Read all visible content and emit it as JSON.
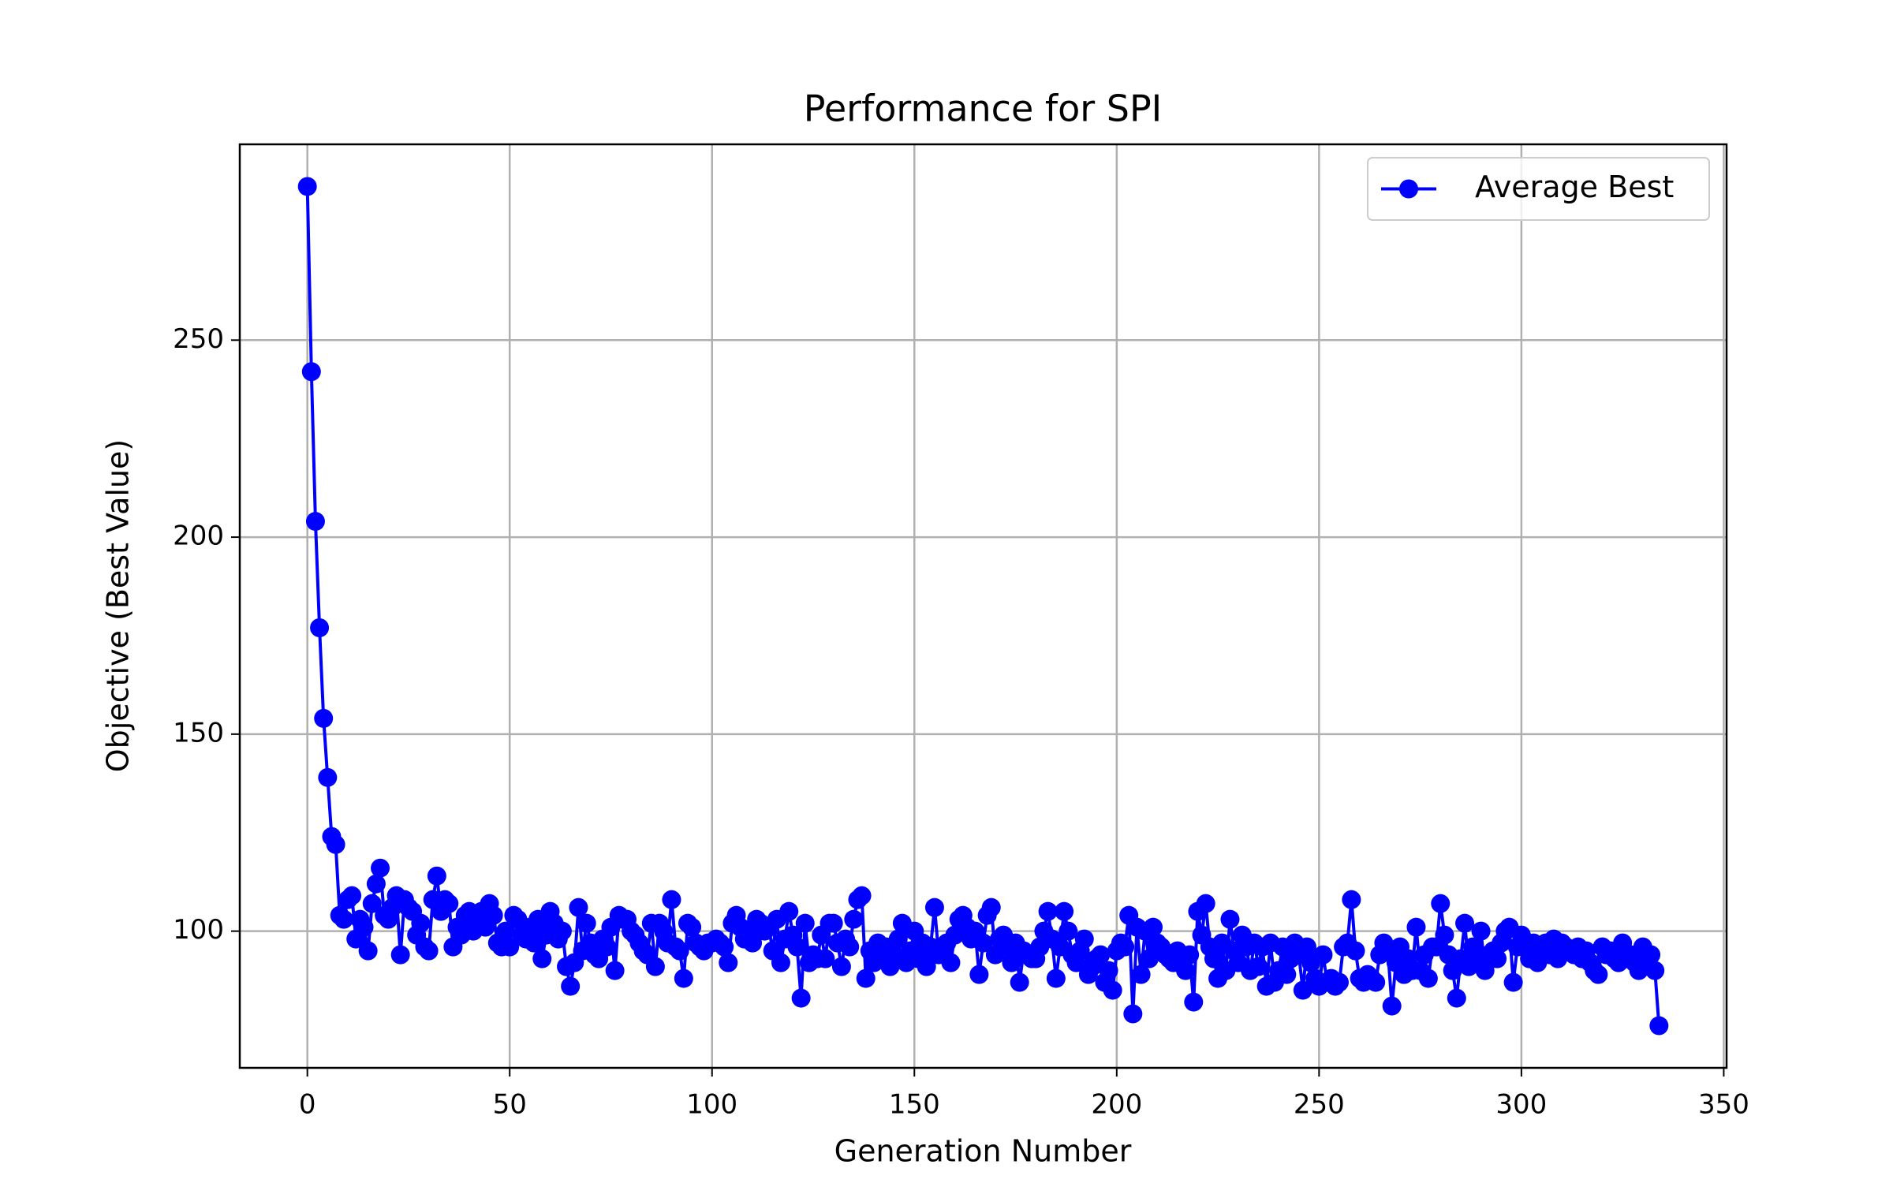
{
  "chart_data": {
    "type": "line",
    "title": "Performance for SPI",
    "x_label": "Generation Number",
    "y_label": "Objective (Best Value)",
    "x": [
      0,
      1,
      2,
      3,
      4,
      5,
      6,
      7,
      8,
      9,
      10,
      11,
      12,
      13,
      14,
      15,
      16,
      17,
      18,
      19,
      20,
      21,
      22,
      23,
      24,
      25,
      26,
      27,
      28,
      29,
      30,
      31,
      32,
      33,
      34,
      35,
      36,
      37,
      38,
      39,
      40,
      41,
      42,
      43,
      44,
      45,
      46,
      47,
      48,
      49,
      50,
      51,
      52,
      53,
      54,
      55,
      56,
      57,
      58,
      59,
      60,
      61,
      62,
      63,
      64,
      65,
      66,
      67,
      68,
      69,
      70,
      71,
      72,
      73,
      74,
      75,
      76,
      77,
      78,
      79,
      80,
      81,
      82,
      83,
      84,
      85,
      86,
      87,
      88,
      89,
      90,
      91,
      92,
      93,
      94,
      95,
      96,
      97,
      98,
      99,
      100,
      101,
      102,
      103,
      104,
      105,
      106,
      107,
      108,
      109,
      110,
      111,
      112,
      113,
      114,
      115,
      116,
      117,
      118,
      119,
      120,
      121,
      122,
      123,
      124,
      125,
      126,
      127,
      128,
      129,
      130,
      131,
      132,
      133,
      134,
      135,
      136,
      137,
      138,
      139,
      140,
      141,
      142,
      143,
      144,
      145,
      146,
      147,
      148,
      149,
      150,
      151,
      152,
      153,
      154,
      155,
      156,
      157,
      158,
      159,
      160,
      161,
      162,
      163,
      164,
      165,
      166,
      167,
      168,
      169,
      170,
      171,
      172,
      173,
      174,
      175,
      176,
      177,
      178,
      179,
      180,
      181,
      182,
      183,
      184,
      185,
      186,
      187,
      188,
      189,
      190,
      191,
      192,
      193,
      194,
      195,
      196,
      197,
      198,
      199,
      200,
      201,
      202,
      203,
      204,
      205,
      206,
      207,
      208,
      209,
      210,
      211,
      212,
      213,
      214,
      215,
      216,
      217,
      218,
      219,
      220,
      221,
      222,
      223,
      224,
      225,
      226,
      227,
      228,
      229,
      230,
      231,
      232,
      233,
      234,
      235,
      236,
      237,
      238,
      239,
      240,
      241,
      242,
      243,
      244,
      245,
      246,
      247,
      248,
      249,
      250,
      251,
      252,
      253,
      254,
      255,
      256,
      257,
      258,
      259,
      260,
      261,
      262,
      263,
      264,
      265,
      266,
      267,
      268,
      269,
      270,
      271,
      272,
      273,
      274,
      275,
      276,
      277,
      278,
      279,
      280,
      281,
      282,
      283,
      284,
      285,
      286,
      287,
      288,
      289,
      290,
      291,
      292,
      293,
      294,
      295,
      296,
      297,
      298,
      299,
      300,
      301,
      302,
      303,
      304,
      305,
      306,
      307,
      308,
      309,
      310,
      311,
      312,
      313,
      314,
      315,
      316,
      317,
      318,
      319,
      320,
      321,
      322,
      323,
      324,
      325,
      326,
      327,
      328,
      329,
      330,
      331,
      332,
      333,
      334
    ],
    "series": [
      {
        "name": "Average Best",
        "color": "#0000ff",
        "values": [
          289,
          242,
          204,
          177,
          154,
          139,
          124,
          122,
          104,
          103,
          108,
          109,
          98,
          103,
          101,
          95,
          107,
          112,
          116,
          104,
          103,
          106,
          109,
          94,
          108,
          106,
          105,
          99,
          102,
          96,
          95,
          108,
          114,
          105,
          108,
          107,
          96,
          101,
          99,
          104,
          105,
          100,
          103,
          105,
          101,
          107,
          104,
          97,
          96,
          100,
          96,
          104,
          103,
          99,
          98,
          101,
          97,
          103,
          93,
          99,
          105,
          102,
          98,
          100,
          91,
          86,
          92,
          106,
          95,
          102,
          97,
          94,
          93,
          98,
          96,
          101,
          90,
          104,
          103,
          103,
          100,
          99,
          97,
          95,
          94,
          102,
          91,
          102,
          100,
          97,
          108,
          96,
          95,
          88,
          102,
          101,
          97,
          96,
          95,
          97,
          97,
          98,
          97,
          96,
          92,
          102,
          104,
          101,
          98,
          99,
          97,
          103,
          102,
          100,
          101,
          95,
          103,
          92,
          98,
          105,
          99,
          96,
          83,
          102,
          92,
          94,
          93,
          99,
          93,
          102,
          102,
          97,
          91,
          98,
          96,
          103,
          108,
          109,
          88,
          95,
          92,
          97,
          93,
          96,
          91,
          94,
          98,
          102,
          92,
          95,
          100,
          93,
          97,
          91,
          96,
          106,
          94,
          95,
          97,
          92,
          99,
          103,
          104,
          101,
          98,
          100,
          89,
          97,
          104,
          106,
          94,
          98,
          99,
          96,
          92,
          97,
          87,
          95,
          94,
          93,
          93,
          96,
          100,
          105,
          98,
          88,
          96,
          105,
          100,
          94,
          92,
          95,
          98,
          89,
          91,
          93,
          94,
          87,
          90,
          85,
          95,
          97,
          96,
          104,
          79,
          101,
          89,
          100,
          93,
          101,
          97,
          96,
          94,
          93,
          92,
          95,
          93,
          90,
          94,
          82,
          105,
          99,
          107,
          96,
          93,
          88,
          97,
          90,
          103,
          95,
          92,
          99,
          96,
          90,
          97,
          91,
          96,
          86,
          97,
          87,
          90,
          96,
          89,
          93,
          97,
          94,
          85,
          96,
          92,
          88,
          86,
          94,
          87,
          88,
          86,
          87,
          96,
          97,
          108,
          95,
          88,
          87,
          89,
          88,
          87,
          94,
          97,
          95,
          81,
          92,
          96,
          89,
          93,
          90,
          101,
          90,
          94,
          88,
          96,
          96,
          107,
          99,
          94,
          90,
          83,
          93,
          102,
          91,
          96,
          94,
          100,
          90,
          94,
          95,
          93,
          97,
          100,
          101,
          87,
          96,
          99,
          96,
          93,
          97,
          92,
          95,
          97,
          94,
          98,
          93,
          97,
          96,
          95,
          94,
          96,
          93,
          95,
          92,
          90,
          89,
          96,
          94,
          95,
          93,
          92,
          97,
          93,
          94,
          92,
          90,
          96,
          93,
          94,
          90,
          76
        ]
      }
    ],
    "xlim": [
      -16.7,
      350.7
    ],
    "ylim": [
      65.3,
      299.7
    ],
    "xticks": [
      0,
      50,
      100,
      150,
      200,
      250,
      300,
      350
    ],
    "yticks": [
      100,
      150,
      200,
      250
    ],
    "grid": true,
    "legend": "upper right"
  }
}
